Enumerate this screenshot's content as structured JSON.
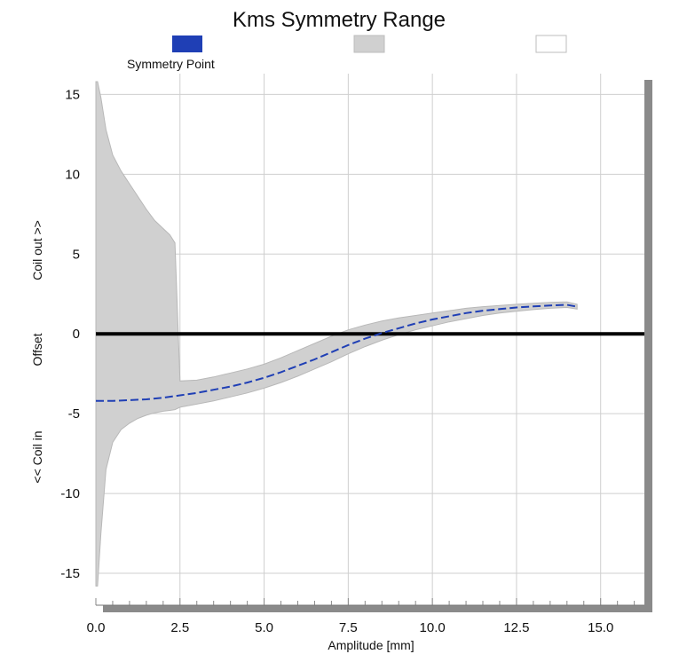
{
  "chart_data": {
    "type": "area",
    "title": "Kms Symmetry Range",
    "xlabel": "Amplitude [mm]",
    "ylabel": {
      "top": "Coil out >>",
      "middle": "Offset",
      "bottom": "<< Coil in"
    },
    "xlim": [
      0,
      16.3
    ],
    "ylim": [
      -17,
      16.3
    ],
    "x_ticks": [
      "0.0",
      "2.5",
      "5.0",
      "7.5",
      "10.0",
      "12.5",
      "15.0"
    ],
    "x_tick_values": [
      0,
      2.5,
      5,
      7.5,
      10,
      12.5,
      15
    ],
    "y_ticks": [
      "15",
      "10",
      "5",
      "0",
      "-5",
      "-10",
      "-15"
    ],
    "y_tick_values": [
      15,
      10,
      5,
      0,
      -5,
      -10,
      -15
    ],
    "grid": true,
    "legend": [
      {
        "label": "Symmetry Point",
        "color": "#1f3fb5"
      },
      {
        "label": "",
        "color": "#d0d0d0"
      },
      {
        "label": "",
        "color": "#ffffff"
      }
    ],
    "series": [
      {
        "name": "Symmetry Point",
        "kind": "dashed-line",
        "color": "#1f3fb5",
        "x": [
          0,
          0.5,
          1,
          1.5,
          2,
          2.5,
          3,
          3.5,
          4,
          4.5,
          5,
          5.5,
          6,
          6.5,
          7,
          7.5,
          8,
          8.5,
          9,
          9.5,
          10,
          10.5,
          11,
          11.5,
          12,
          12.5,
          13,
          13.5,
          14,
          14.3
        ],
        "y": [
          -4.2,
          -4.2,
          -4.15,
          -4.1,
          -4.0,
          -3.85,
          -3.7,
          -3.5,
          -3.3,
          -3.05,
          -2.75,
          -2.4,
          -2.0,
          -1.6,
          -1.15,
          -0.7,
          -0.3,
          0.05,
          0.35,
          0.65,
          0.9,
          1.1,
          1.3,
          1.45,
          1.55,
          1.65,
          1.72,
          1.78,
          1.82,
          1.7
        ]
      },
      {
        "name": "",
        "kind": "range-band",
        "color": "#d0d0d0",
        "x": [
          0,
          0.05,
          0.15,
          0.3,
          0.5,
          0.75,
          1,
          1.25,
          1.5,
          1.75,
          2,
          2.2,
          2.35,
          2.5,
          3,
          3.5,
          4,
          4.5,
          5,
          5.5,
          6,
          6.5,
          7,
          7.5,
          8,
          8.5,
          9,
          9.5,
          10,
          10.5,
          11,
          11.5,
          12,
          12.5,
          13,
          13.5,
          14,
          14.3
        ],
        "upper": [
          15.8,
          15.8,
          14.8,
          12.8,
          11.2,
          10.2,
          9.4,
          8.6,
          7.8,
          7.1,
          6.6,
          6.2,
          5.7,
          -2.95,
          -2.9,
          -2.7,
          -2.45,
          -2.2,
          -1.9,
          -1.5,
          -1.05,
          -0.6,
          -0.15,
          0.25,
          0.55,
          0.8,
          1.0,
          1.15,
          1.3,
          1.45,
          1.6,
          1.7,
          1.78,
          1.85,
          1.92,
          1.97,
          2.0,
          1.85
        ],
        "lower": [
          -15.8,
          -15.8,
          -12.5,
          -8.5,
          -6.8,
          -6.0,
          -5.6,
          -5.3,
          -5.1,
          -4.95,
          -4.85,
          -4.8,
          -4.75,
          -4.6,
          -4.4,
          -4.2,
          -3.95,
          -3.7,
          -3.4,
          -3.05,
          -2.65,
          -2.2,
          -1.75,
          -1.25,
          -0.8,
          -0.4,
          -0.05,
          0.25,
          0.5,
          0.75,
          0.95,
          1.15,
          1.3,
          1.42,
          1.52,
          1.6,
          1.65,
          1.55
        ]
      }
    ]
  }
}
